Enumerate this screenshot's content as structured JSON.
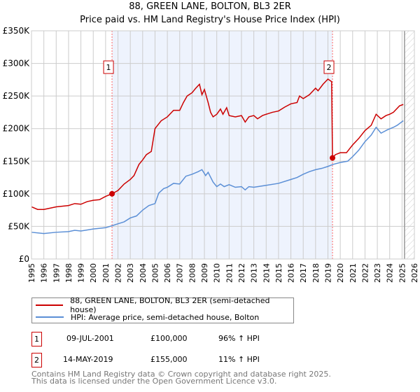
{
  "title": [
    "88, GREEN LANE, BOLTON, BL3 2ER",
    "Price paid vs. HM Land Registry's House Price Index (HPI)"
  ],
  "chart_data": {
    "type": "line",
    "title": "88, GREEN LANE, BOLTON, BL3 2ER - Price paid vs. HM Land Registry's House Price Index (HPI)",
    "xlim": [
      1995,
      2026
    ],
    "ylim": [
      0,
      350000
    ],
    "xticks": [
      1995,
      1996,
      1997,
      1998,
      1999,
      2000,
      2001,
      2002,
      2003,
      2004,
      2005,
      2006,
      2007,
      2008,
      2009,
      2010,
      2011,
      2012,
      2013,
      2014,
      2015,
      2016,
      2017,
      2018,
      2019,
      2020,
      2021,
      2022,
      2023,
      2024,
      2025,
      2026
    ],
    "yticks": [
      {
        "v": 0,
        "label": "£0"
      },
      {
        "v": 50000,
        "label": "£50K"
      },
      {
        "v": 100000,
        "label": "£100K"
      },
      {
        "v": 150000,
        "label": "£150K"
      },
      {
        "v": 200000,
        "label": "£200K"
      },
      {
        "v": 250000,
        "label": "£250K"
      },
      {
        "v": 300000,
        "label": "£300K"
      },
      {
        "v": 350000,
        "label": "£350K"
      }
    ],
    "grid": true,
    "colors": {
      "property": "#cc0000",
      "hpi": "#5b8fd6",
      "shade": "#eef3fd"
    },
    "shaded_range": [
      2001.52,
      2019.37
    ],
    "forecast_from": 2025.2,
    "series": [
      {
        "name": "88, GREEN LANE, BOLTON, BL3 2ER (semi-detached house)",
        "x": [
          1995,
          1995.5,
          1996,
          1997,
          1998,
          1998.5,
          1999,
          1999.5,
          2000,
          2000.5,
          2001,
          2001.52,
          2002,
          2002.5,
          2003,
          2003.3,
          2003.7,
          2004,
          2004.3,
          2004.7,
          2005,
          2005.5,
          2006,
          2006.5,
          2007,
          2007.3,
          2007.6,
          2008,
          2008.3,
          2008.6,
          2008.8,
          2009,
          2009.3,
          2009.5,
          2009.7,
          2010,
          2010.3,
          2010.5,
          2010.8,
          2011,
          2011.5,
          2012,
          2012.3,
          2012.6,
          2013,
          2013.3,
          2013.7,
          2014,
          2014.5,
          2015,
          2015.5,
          2016,
          2016.5,
          2016.7,
          2017,
          2017.5,
          2018,
          2018.2,
          2018.6,
          2019,
          2019.3,
          2019.37,
          2019.6,
          2020,
          2020.5,
          2021,
          2021.5,
          2022,
          2022.5,
          2022.9,
          2023.3,
          2023.7,
          2024,
          2024.3,
          2024.8,
          2025.1
        ],
        "y": [
          80000,
          76000,
          76000,
          80000,
          82000,
          85000,
          84000,
          88000,
          90000,
          91000,
          96000,
          100000,
          105000,
          115000,
          122000,
          128000,
          145000,
          152000,
          160000,
          165000,
          200000,
          212000,
          218000,
          228000,
          228000,
          240000,
          250000,
          255000,
          262000,
          268000,
          252000,
          260000,
          240000,
          225000,
          218000,
          222000,
          230000,
          222000,
          232000,
          220000,
          218000,
          220000,
          210000,
          218000,
          220000,
          215000,
          220000,
          222000,
          225000,
          227000,
          233000,
          238000,
          240000,
          250000,
          246000,
          252000,
          262000,
          258000,
          268000,
          276000,
          272000,
          155000,
          160000,
          163000,
          163000,
          175000,
          185000,
          197000,
          205000,
          222000,
          215000,
          220000,
          222000,
          225000,
          235000,
          237000
        ]
      },
      {
        "name": "HPI: Average price, semi-detached house, Bolton",
        "x": [
          1995,
          1996,
          1997,
          1998,
          1998.5,
          1999,
          2000,
          2001,
          2001.52,
          2002,
          2002.5,
          2003,
          2003.5,
          2004,
          2004.5,
          2005,
          2005.3,
          2005.7,
          2006,
          2006.5,
          2007,
          2007.5,
          2008,
          2008.5,
          2008.8,
          2009.1,
          2009.3,
          2009.7,
          2010,
          2010.3,
          2010.6,
          2011,
          2011.5,
          2012,
          2012.3,
          2012.6,
          2013,
          2014,
          2015,
          2016,
          2016.5,
          2017,
          2017.5,
          2018,
          2018.5,
          2019,
          2019.4,
          2020,
          2020.6,
          2021,
          2021.5,
          2022,
          2022.5,
          2022.9,
          2023.3,
          2023.8,
          2024.3,
          2024.6,
          2025.1
        ],
        "y": [
          41000,
          39000,
          41000,
          42000,
          44000,
          43000,
          46000,
          48000,
          51000,
          54000,
          57000,
          63000,
          66000,
          75000,
          82000,
          85000,
          101000,
          108000,
          110000,
          116000,
          115000,
          127000,
          130000,
          134000,
          137000,
          128000,
          133000,
          118000,
          111000,
          115000,
          111000,
          114000,
          110000,
          111000,
          106000,
          111000,
          110000,
          113000,
          116000,
          122000,
          125000,
          130000,
          134000,
          137000,
          139000,
          142000,
          145000,
          148000,
          150000,
          157000,
          167000,
          180000,
          190000,
          202000,
          193000,
          198000,
          202000,
          205000,
          212000
        ]
      }
    ],
    "sales": [
      {
        "label": "1",
        "x": 2001.52,
        "y": 100000
      },
      {
        "label": "2",
        "x": 2019.37,
        "y": 155000
      }
    ]
  },
  "legend": [
    "88, GREEN LANE, BOLTON, BL3 2ER (semi-detached house)",
    "HPI: Average price, semi-detached house, Bolton"
  ],
  "table": [
    {
      "num": "1",
      "date": "09-JUL-2001",
      "price": "£100,000",
      "hpi": "96% ↑ HPI"
    },
    {
      "num": "2",
      "date": "14-MAY-2019",
      "price": "£155,000",
      "hpi": "11% ↑ HPI"
    }
  ],
  "footer": [
    "Contains HM Land Registry data © Crown copyright and database right 2025.",
    "This data is licensed under the Open Government Licence v3.0."
  ]
}
